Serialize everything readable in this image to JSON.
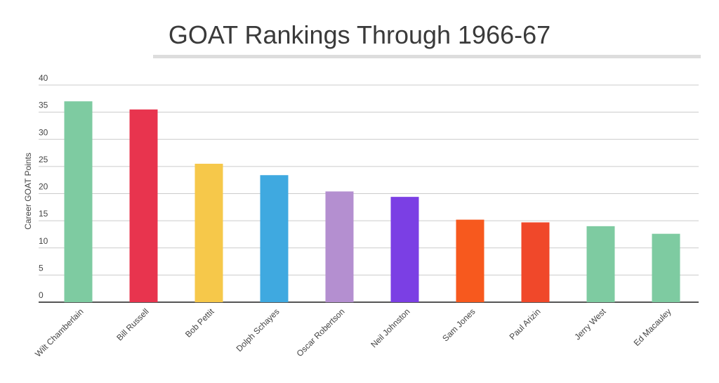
{
  "chart_data": {
    "type": "bar",
    "title": "GOAT Rankings Through 1966-67",
    "y_label": "Career GOAT Points",
    "categories": [
      "Wilt Chamberlain",
      "Bill Russell",
      "Bob Pettit",
      "Dolph Schayes",
      "Oscar Robertson",
      "Neil Johnston",
      "Sam Jones",
      "Paul Arizin",
      "Jerry West",
      "Ed Macauley"
    ],
    "values": [
      37,
      35.5,
      25.5,
      23.4,
      20.4,
      19.4,
      15.2,
      14.7,
      14,
      12.6
    ],
    "colors": [
      "#7ecba1",
      "#e8344e",
      "#f6c84a",
      "#3fa9e0",
      "#b48fd0",
      "#7b3fe4",
      "#f7591e",
      "#f0482a",
      "#7ecba1",
      "#7ecba1"
    ],
    "ylim": [
      0,
      40
    ],
    "yticks": [
      0,
      5,
      10,
      15,
      20,
      25,
      30,
      35,
      40
    ],
    "grid": true
  }
}
